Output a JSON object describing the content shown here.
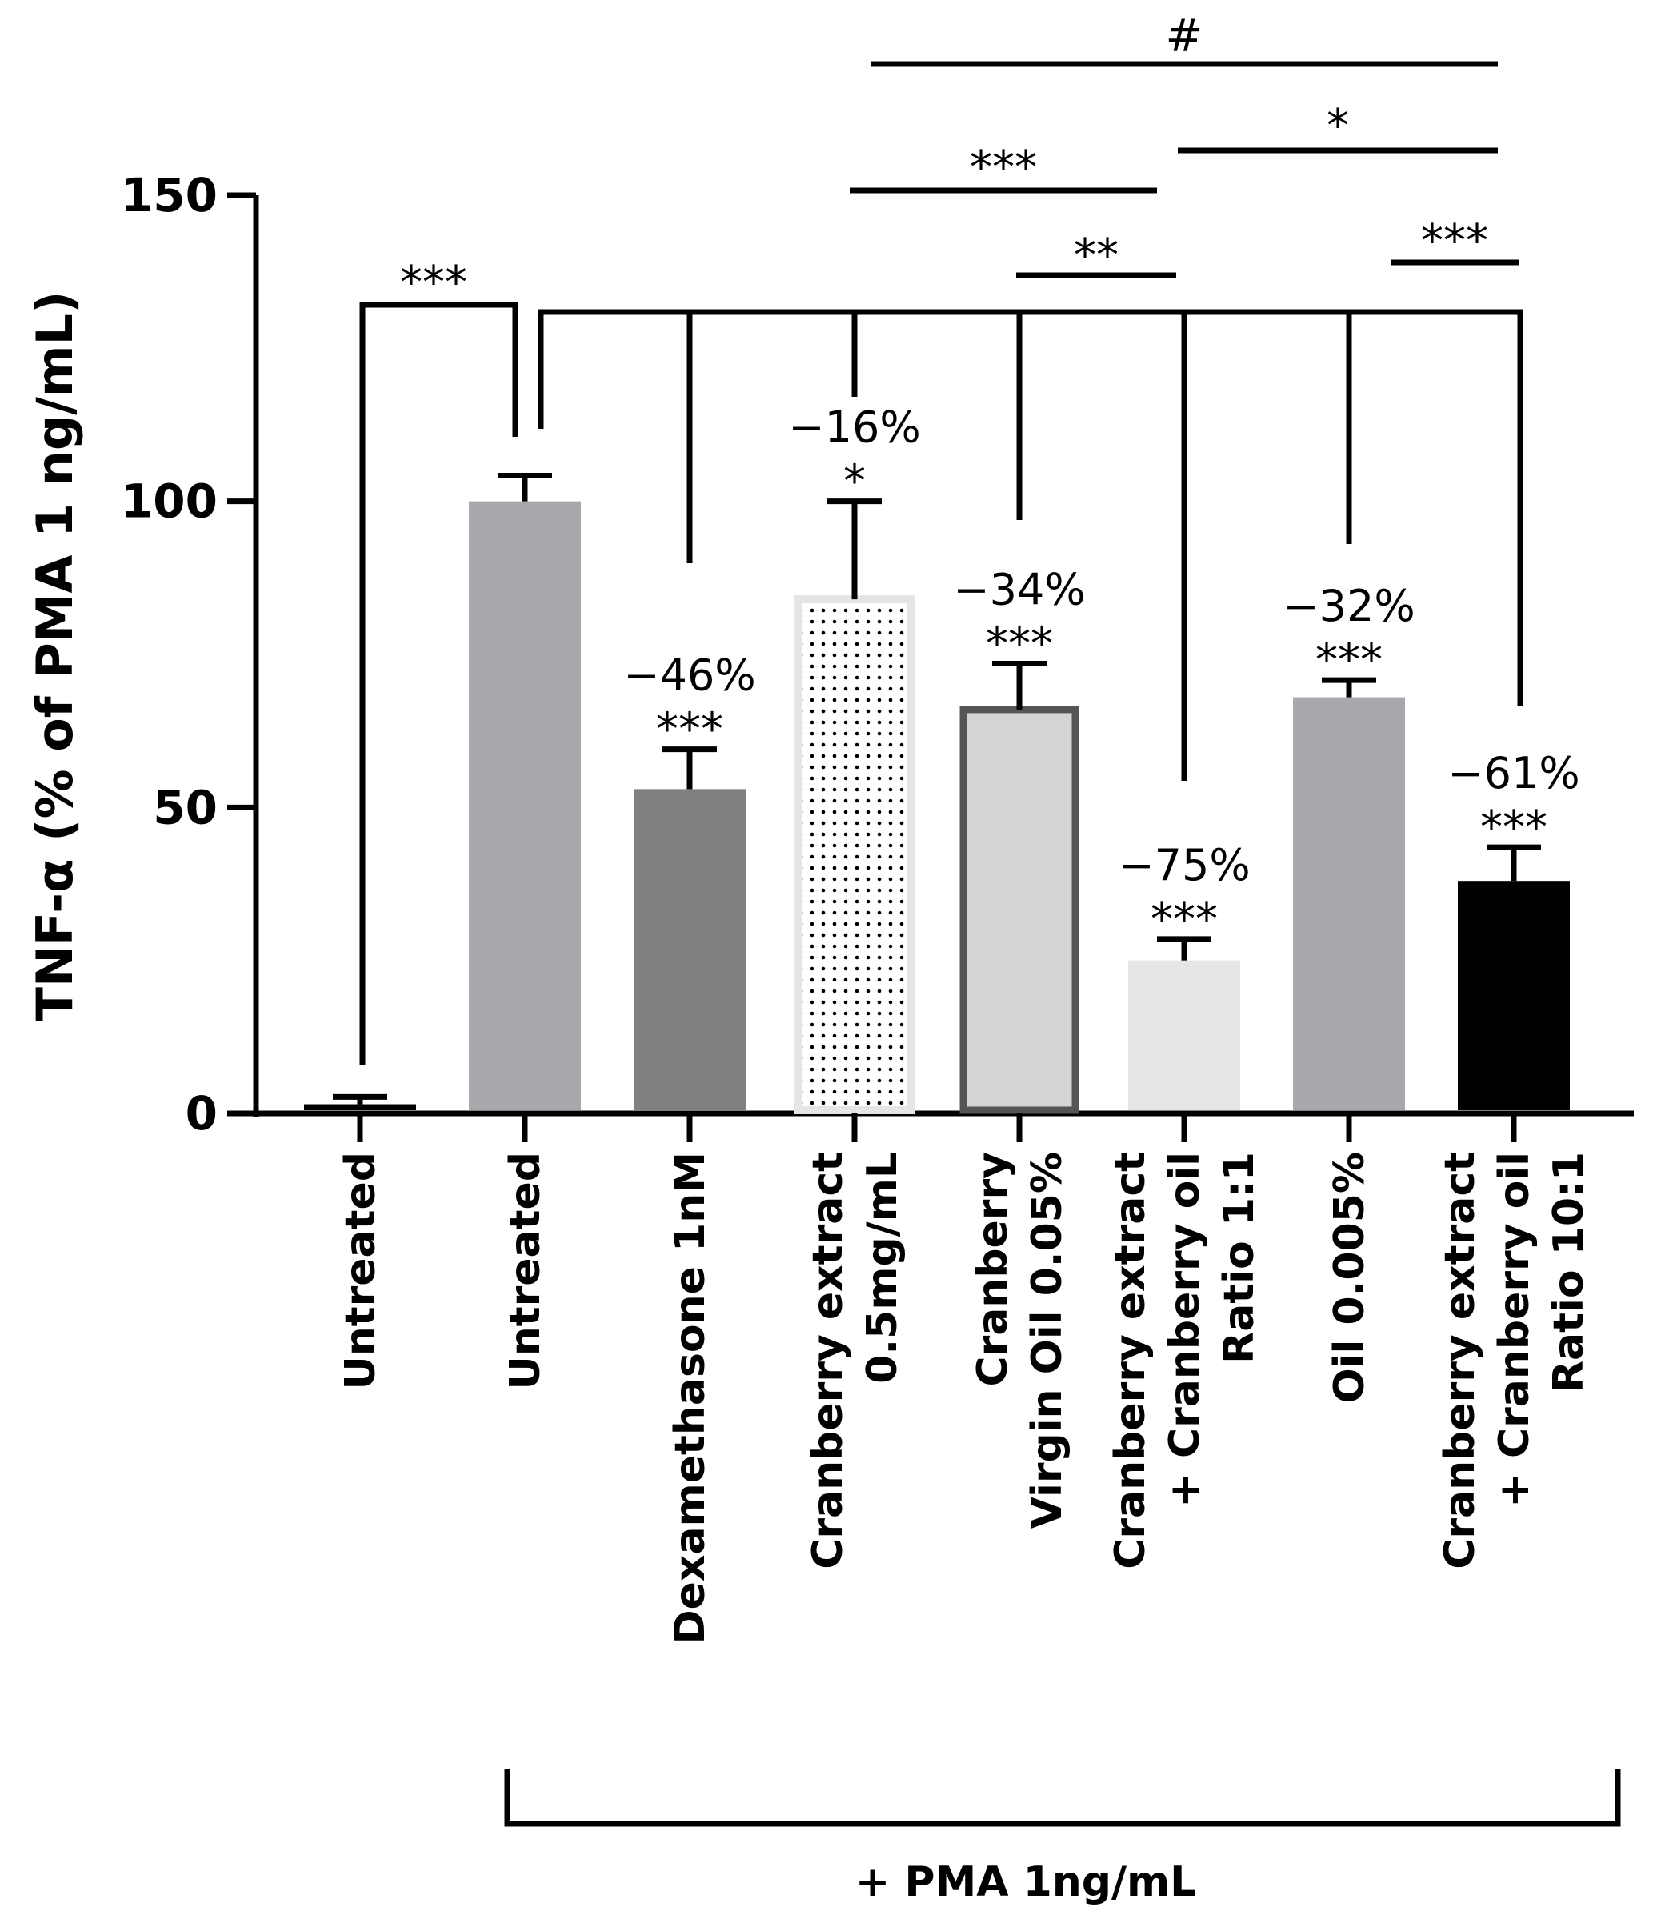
{
  "chart_data": {
    "type": "bar",
    "ylabel": "TNF-α (% of PMA 1 ng/mL)",
    "ylim": [
      0,
      150
    ],
    "yticks": [
      0,
      50,
      100,
      150
    ],
    "categories": [
      [
        "Untreated"
      ],
      [
        "Untreated"
      ],
      [
        "Dexamethasone 1nM"
      ],
      [
        "Cranberry extract",
        "0.5mg/mL"
      ],
      [
        "Cranberry",
        "Virgin Oil 0.05%"
      ],
      [
        "Cranberry extract",
        "+ Cranberry oil",
        "Ratio 1:1"
      ],
      [
        "Oil 0.005%"
      ],
      [
        "Cranberry extract",
        "+ Cranberry oil",
        "Ratio 10:1"
      ]
    ],
    "values": [
      1.5,
      100,
      53,
      84,
      66,
      25,
      68,
      38
    ],
    "errors": [
      1.2,
      4.2,
      6.5,
      16,
      7.5,
      3.5,
      2.8,
      5.5
    ],
    "fills": [
      "#000000",
      "#a7a9ac",
      "#808080",
      "dots",
      "#d4d4d4",
      "#e6e6e6",
      "#a7a9ac",
      "#000000"
    ],
    "bar_annotations": [
      {
        "bar": 2,
        "percent": "−46%",
        "stars": "***"
      },
      {
        "bar": 3,
        "percent": "−16%",
        "stars": "*"
      },
      {
        "bar": 4,
        "percent": "−34%",
        "stars": "***"
      },
      {
        "bar": 5,
        "percent": "−75%",
        "stars": "***"
      },
      {
        "bar": 6,
        "percent": "−32%",
        "stars": "***"
      },
      {
        "bar": 7,
        "percent": "−61%",
        "stars": "***"
      }
    ],
    "comparisons": [
      {
        "from": 0,
        "to": 1,
        "label": "***"
      },
      {
        "from": 4,
        "to": 5,
        "label": "**"
      },
      {
        "from": 3,
        "to": 5,
        "label": "***"
      },
      {
        "from": 5,
        "to": 7,
        "label": "*"
      },
      {
        "from": 6,
        "to": 7,
        "label": "***"
      },
      {
        "from": 3,
        "to": 7,
        "label": "#"
      }
    ],
    "group_bracket_label": "+ PMA 1ng/mL"
  }
}
